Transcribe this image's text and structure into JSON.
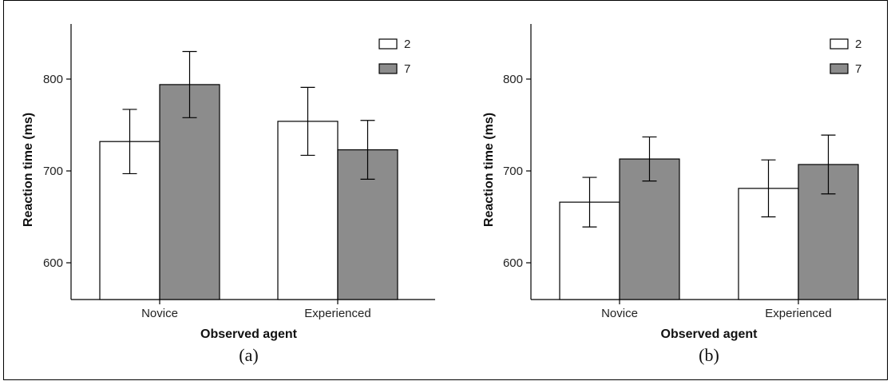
{
  "chart_data": [
    {
      "type": "bar",
      "panel_label": "(a)",
      "xlabel": "Observed agent",
      "ylabel": "Reaction time (ms)",
      "categories": [
        "Novice",
        "Experienced"
      ],
      "yticks": [
        600,
        700,
        800
      ],
      "ylim": [
        560,
        860
      ],
      "legend_position": "top-right",
      "series": [
        {
          "name": "2",
          "color": "#ffffff",
          "values": [
            732,
            754
          ],
          "errors": [
            35,
            37
          ]
        },
        {
          "name": "7",
          "color": "#8c8c8c",
          "values": [
            794,
            723
          ],
          "errors": [
            36,
            32
          ]
        }
      ]
    },
    {
      "type": "bar",
      "panel_label": "(b)",
      "xlabel": "Observed agent",
      "ylabel": "Reaction time (ms)",
      "categories": [
        "Novice",
        "Experienced"
      ],
      "yticks": [
        600,
        700,
        800
      ],
      "ylim": [
        560,
        860
      ],
      "legend_position": "top-right",
      "series": [
        {
          "name": "2",
          "color": "#ffffff",
          "values": [
            666,
            681
          ],
          "errors": [
            27,
            31
          ]
        },
        {
          "name": "7",
          "color": "#8c8c8c",
          "values": [
            713,
            707
          ],
          "errors": [
            24,
            32
          ]
        }
      ]
    }
  ]
}
